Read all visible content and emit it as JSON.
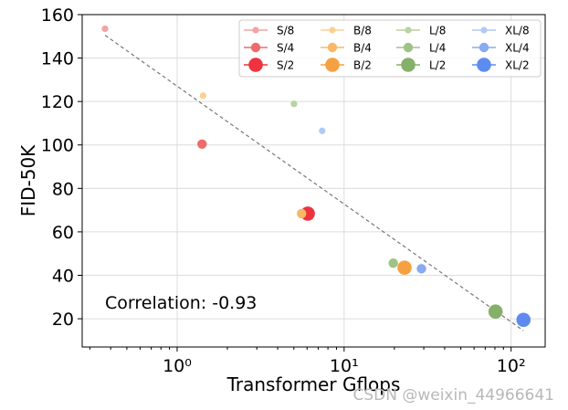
{
  "chart_data": {
    "type": "scatter",
    "title": "",
    "xlabel": "Transformer Gflops",
    "ylabel": "FID-50K",
    "xscale": "log",
    "xlim": [
      0.27,
      160
    ],
    "ylim": [
      7,
      160
    ],
    "xticks": [
      {
        "value": 1,
        "label": "10⁰"
      },
      {
        "value": 10,
        "label": "10¹"
      },
      {
        "value": 100,
        "label": "10²"
      }
    ],
    "yticks": [
      20,
      40,
      60,
      80,
      100,
      120,
      140,
      160
    ],
    "grid": true,
    "legend_position": "top-right",
    "legend_columns": 4,
    "series": [
      {
        "name": "S/8",
        "color": "#f4a3a3",
        "size": 1,
        "x": 0.37,
        "y": 153.5
      },
      {
        "name": "S/4",
        "color": "#ef6a6a",
        "size": 2,
        "x": 1.41,
        "y": 100.4
      },
      {
        "name": "S/2",
        "color": "#ee3340",
        "size": 3,
        "x": 6.06,
        "y": 68.4
      },
      {
        "name": "B/8",
        "color": "#fbcf94",
        "size": 1,
        "x": 1.43,
        "y": 122.7
      },
      {
        "name": "B/4",
        "color": "#f9b767",
        "size": 2,
        "x": 5.56,
        "y": 68.4
      },
      {
        "name": "B/2",
        "color": "#f5a141",
        "size": 3,
        "x": 23.01,
        "y": 43.5
      },
      {
        "name": "L/8",
        "color": "#b7d4a2",
        "size": 1,
        "x": 5.01,
        "y": 118.9
      },
      {
        "name": "L/4",
        "color": "#9fc285",
        "size": 2,
        "x": 19.7,
        "y": 45.6
      },
      {
        "name": "L/2",
        "color": "#86b06a",
        "size": 3,
        "x": 80.71,
        "y": 23.3
      },
      {
        "name": "XL/8",
        "color": "#b0c9f7",
        "size": 1,
        "x": 7.39,
        "y": 106.5
      },
      {
        "name": "XL/4",
        "color": "#88abf1",
        "size": 2,
        "x": 29.05,
        "y": 43.0
      },
      {
        "name": "XL/2",
        "color": "#5d8bf0",
        "size": 3,
        "x": 118.64,
        "y": 19.5
      }
    ],
    "trendline": {
      "style": "dashed",
      "color": "#777777",
      "x": [
        0.37,
        118.64
      ],
      "y": [
        150.5,
        14.5
      ]
    },
    "annotations": [
      {
        "text": "Correlation: -0.93"
      }
    ]
  },
  "watermark": "CSDN @weixin_44966641"
}
